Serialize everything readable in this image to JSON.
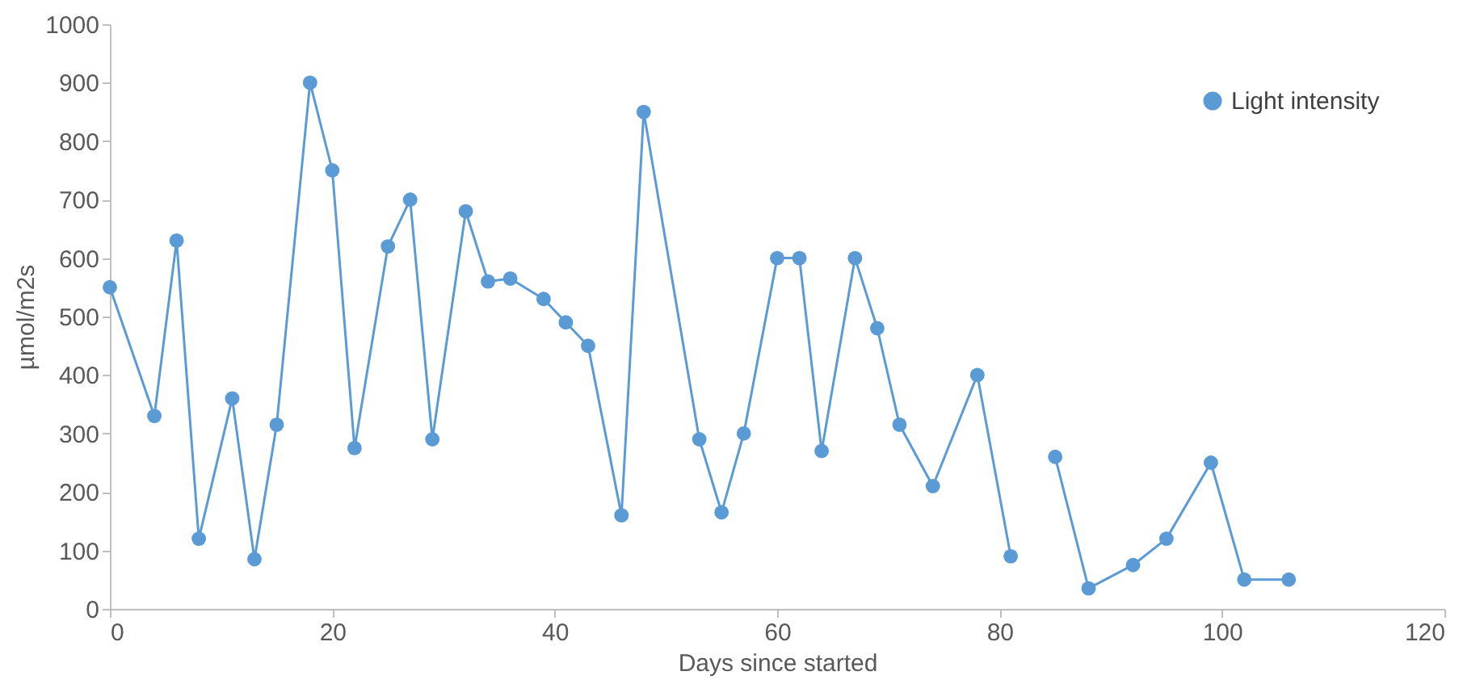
{
  "chart_data": {
    "type": "line",
    "xlabel": "Days since started",
    "ylabel": "µmol/m2s",
    "x": [
      0,
      4,
      6,
      8,
      11,
      13,
      15,
      18,
      20,
      22,
      25,
      27,
      29,
      32,
      34,
      36,
      39,
      41,
      43,
      46,
      48,
      53,
      55,
      57,
      60,
      62,
      64,
      67,
      69,
      71,
      74,
      78,
      81,
      83,
      85,
      88,
      92,
      95,
      99,
      102,
      106
    ],
    "series": [
      {
        "name": "Light intensity",
        "color": "#5b9bd5",
        "values": [
          550,
          330,
          630,
          120,
          360,
          85,
          315,
          900,
          750,
          275,
          620,
          700,
          290,
          680,
          560,
          565,
          530,
          490,
          450,
          160,
          850,
          290,
          165,
          300,
          600,
          600,
          270,
          600,
          480,
          315,
          210,
          400,
          90,
          null,
          260,
          35,
          75,
          120,
          250,
          50,
          50
        ]
      }
    ],
    "xlim": [
      0,
      120
    ],
    "xticks": [
      0,
      20,
      40,
      60,
      80,
      100,
      120
    ],
    "ylim": [
      0,
      1000
    ],
    "yticks": [
      0,
      100,
      200,
      300,
      400,
      500,
      600,
      700,
      800,
      900,
      1000
    ],
    "grid": false,
    "legend": "top right",
    "marker": "circle",
    "line_style": "solid"
  }
}
